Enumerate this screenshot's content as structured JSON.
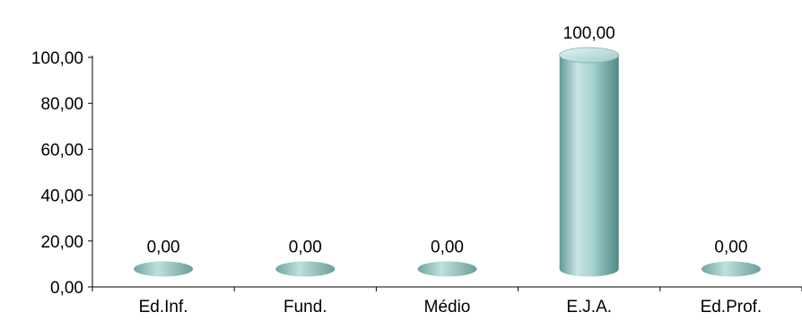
{
  "chart_data": {
    "type": "bar",
    "style": "3d-cylinder",
    "categories": [
      "Ed.Inf.",
      "Fund.",
      "Médio",
      "E.J.A.",
      "Ed.Prof."
    ],
    "values": [
      0,
      0,
      0,
      100,
      0
    ],
    "data_labels": [
      "0,00",
      "0,00",
      "0,00",
      "100,00",
      "0,00"
    ],
    "title": "",
    "xlabel": "",
    "ylabel": "",
    "ylim": [
      0,
      100
    ],
    "y_ticks": [
      {
        "value": 0,
        "label": "0,00"
      },
      {
        "value": 20,
        "label": "20,00"
      },
      {
        "value": 40,
        "label": "40,00"
      },
      {
        "value": 60,
        "label": "60,00"
      },
      {
        "value": 80,
        "label": "80,00"
      },
      {
        "value": 100,
        "label": "100,00"
      }
    ],
    "grid": false,
    "legend": "none",
    "colors": {
      "bar_light": "#c9e6e4",
      "bar_mid": "#8fc2bf",
      "bar_dark": "#4f8784",
      "axis": "#000000"
    }
  }
}
